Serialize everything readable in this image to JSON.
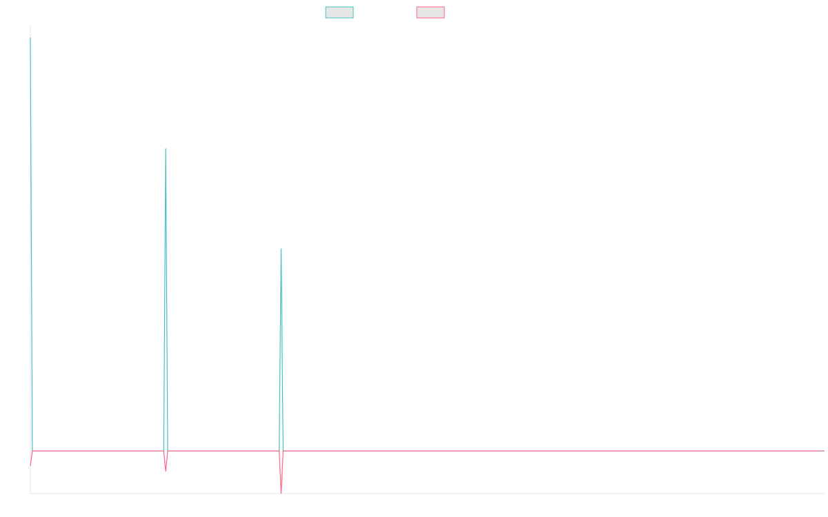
{
  "chart_data": {
    "type": "line",
    "title": "",
    "xlabel": "",
    "ylabel": "",
    "grid": false,
    "legend_placement": "top-center",
    "x": [
      0,
      1,
      2,
      3,
      4,
      5,
      6,
      7,
      8,
      9,
      10,
      11,
      12,
      13,
      14,
      15,
      16,
      17,
      18,
      19,
      20,
      21,
      22,
      23,
      24,
      25,
      26,
      27,
      28,
      29,
      30,
      31,
      32,
      33,
      34,
      35,
      36,
      37,
      38,
      39,
      40,
      41,
      42,
      43,
      44,
      45,
      46,
      47,
      48,
      49,
      50,
      51,
      52,
      53,
      54,
      55,
      56,
      57,
      58,
      59,
      60,
      61,
      62,
      63,
      64,
      65,
      66,
      67,
      68,
      69,
      70,
      71,
      72,
      73,
      74,
      75,
      76,
      77,
      78,
      79,
      80,
      81,
      82,
      83,
      84,
      85,
      86,
      87,
      88,
      89,
      90,
      91,
      92,
      93,
      94,
      95,
      96,
      97,
      98,
      99,
      100,
      101,
      102,
      103,
      104,
      105,
      106,
      107,
      108,
      109,
      110,
      111,
      112,
      113,
      114,
      115,
      116,
      117,
      118,
      119,
      120,
      121,
      122,
      123,
      124,
      125,
      126,
      127,
      128,
      129,
      130,
      131,
      132,
      133,
      134,
      135,
      136,
      137,
      138,
      139,
      140,
      141,
      142,
      143,
      144,
      145,
      146,
      147,
      148,
      149,
      150,
      151,
      152,
      153,
      154,
      155,
      156,
      157,
      158,
      159,
      160,
      161,
      162,
      163,
      164,
      165,
      166,
      167,
      168,
      169,
      170,
      171,
      172,
      173,
      174,
      175,
      176,
      177,
      178,
      179,
      180,
      181,
      182,
      183,
      184,
      185,
      186,
      187,
      188,
      189,
      190,
      191,
      192,
      193,
      194,
      195,
      196,
      197,
      198,
      199,
      200,
      201,
      202,
      203,
      204,
      205,
      206,
      207,
      208,
      209,
      210,
      211,
      212,
      213,
      214,
      215,
      216,
      217,
      218,
      219,
      220,
      221,
      222,
      223,
      224,
      225,
      226,
      227,
      228,
      229,
      230,
      231,
      232,
      233,
      234,
      235,
      236,
      237,
      238,
      239,
      240,
      241,
      242,
      243,
      244,
      245,
      246,
      247,
      248,
      249,
      250,
      251,
      252,
      253,
      254,
      255,
      256,
      257,
      258,
      259,
      260,
      261,
      262,
      263,
      264,
      265,
      266,
      267,
      268,
      269,
      270,
      271,
      272,
      273,
      274,
      275,
      276,
      277,
      278,
      279,
      280,
      281,
      282,
      283,
      284,
      285,
      286,
      287,
      288,
      289,
      290,
      291,
      292,
      293,
      294,
      295,
      296,
      297,
      298,
      299,
      300,
      301,
      302,
      303,
      304,
      305,
      306,
      307,
      308,
      309,
      310,
      311,
      312,
      313,
      314,
      315,
      316,
      317,
      318,
      319,
      320,
      321,
      322,
      323,
      324,
      325,
      326,
      327,
      328,
      329,
      330,
      331,
      332,
      333,
      334,
      335,
      336,
      337,
      338,
      339,
      340,
      341,
      342,
      343,
      344,
      345,
      346,
      347,
      348,
      349,
      350,
      351,
      352,
      353,
      354,
      355,
      356,
      357,
      358,
      359,
      360,
      361,
      362,
      363,
      364,
      365,
      366,
      367,
      368,
      369,
      370,
      371,
      372,
      373,
      374,
      375,
      376,
      377,
      378,
      379,
      380,
      381,
      382,
      383,
      384,
      385,
      386,
      387,
      388,
      389,
      390,
      391,
      392,
      393,
      394,
      395,
      396,
      397,
      398,
      399
    ],
    "xlim": [
      0,
      399
    ],
    "ylim": [
      -100,
      1000
    ],
    "series": [
      {
        "color": "#4bc0c0",
        "legend_fill": "#e6e6e6",
        "spikes": [
          [
            0,
            970
          ],
          [
            68,
            710
          ],
          [
            126,
            475
          ]
        ]
      },
      {
        "color": "#ff6384",
        "legend_fill": "#e6e6e6",
        "spikes": [
          [
            0,
            -35
          ],
          [
            68,
            -48
          ],
          [
            126,
            -100
          ]
        ]
      }
    ]
  }
}
